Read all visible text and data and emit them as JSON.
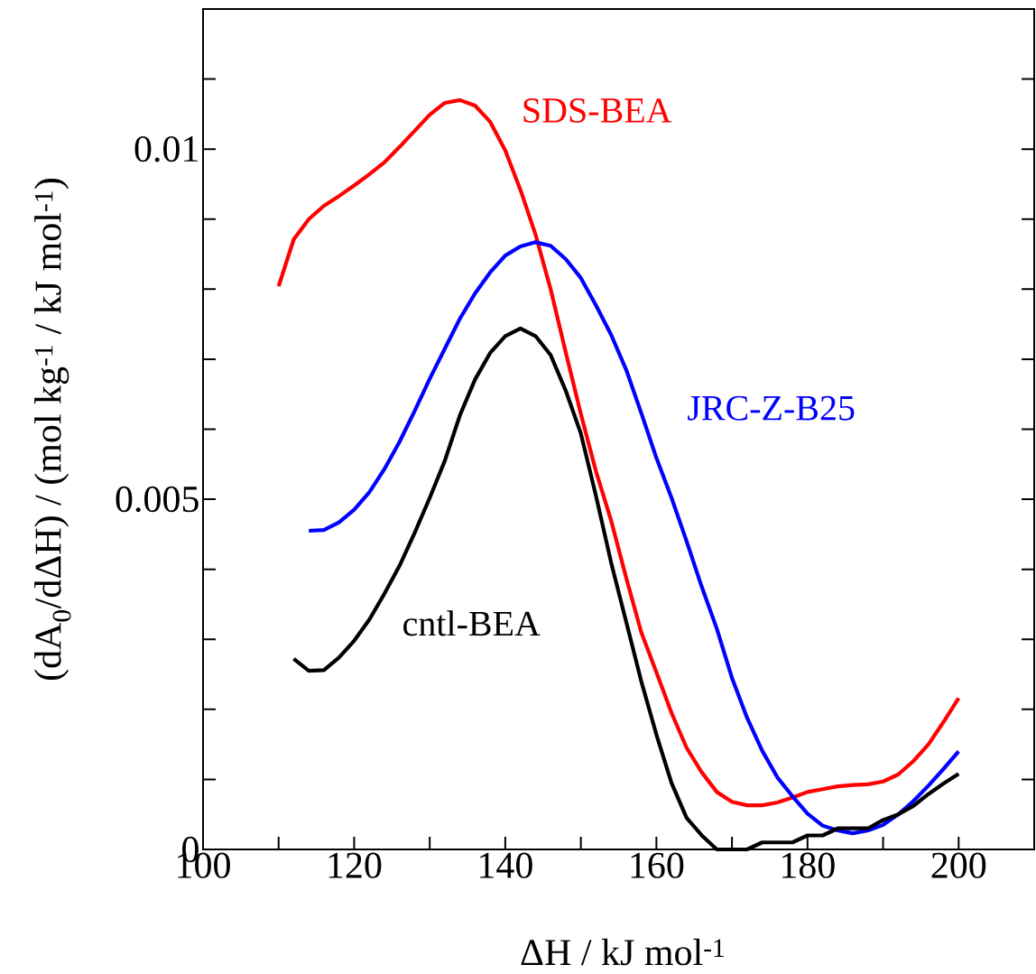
{
  "chart_data": {
    "type": "line",
    "xlabel": "ΔH / kJ mol$^{-1}$",
    "ylabel": "(dA$_{0}$/dΔH) / (mol kg$^{-1}$ / kJ mol$^{-1}$)",
    "xlim": [
      100,
      210
    ],
    "ylim": [
      0,
      0.012
    ],
    "xticks": [
      100,
      {
        "value": 110,
        "label": null
      },
      120,
      {
        "value": 130,
        "label": null
      },
      140,
      {
        "value": 150,
        "label": null
      },
      160,
      {
        "value": 170,
        "label": null
      },
      180,
      {
        "value": 190,
        "label": null
      },
      200,
      {
        "value": 210,
        "label": null
      }
    ],
    "yticks": [
      0,
      {
        "value": 0.001,
        "label": null
      },
      {
        "value": 0.002,
        "label": null
      },
      {
        "value": 0.003,
        "label": null
      },
      {
        "value": 0.004,
        "label": null
      },
      0.005,
      {
        "value": 0.006,
        "label": null
      },
      {
        "value": 0.007,
        "label": null
      },
      {
        "value": 0.008,
        "label": null
      },
      {
        "value": 0.009,
        "label": null
      },
      0.01,
      {
        "value": 0.011,
        "label": null
      },
      {
        "value": 0.012,
        "label": null
      }
    ],
    "series": [
      {
        "name": "SDS-BEA",
        "color": "#ff0000",
        "x": [
          110,
          112,
          114,
          116,
          118,
          120,
          122,
          124,
          126,
          128,
          130,
          132,
          134,
          136,
          138,
          140,
          142,
          144,
          146,
          148,
          150,
          152,
          154,
          156,
          158,
          160,
          162,
          164,
          166,
          168,
          170,
          172,
          174,
          176,
          178,
          180,
          182,
          184,
          186,
          188,
          190,
          192,
          194,
          196,
          198,
          200
        ],
        "values": [
          0.00804,
          0.00871,
          0.009,
          0.00919,
          0.00933,
          0.00948,
          0.00964,
          0.00981,
          0.01003,
          0.01026,
          0.01049,
          0.01066,
          0.0107,
          0.01062,
          0.01039,
          0.00998,
          0.00942,
          0.00878,
          0.008,
          0.0071,
          0.00622,
          0.0054,
          0.0047,
          0.00388,
          0.0031,
          0.00253,
          0.00195,
          0.00145,
          0.0011,
          0.00082,
          0.00068,
          0.00063,
          0.00063,
          0.00067,
          0.00074,
          0.00082,
          0.00086,
          0.0009,
          0.00092,
          0.00093,
          0.00097,
          0.00107,
          0.00126,
          0.0015,
          0.00182,
          0.00216
        ]
      },
      {
        "name": "JRC-Z-B25",
        "color": "#0000ff",
        "x": [
          114,
          116,
          118,
          120,
          122,
          124,
          126,
          128,
          130,
          132,
          134,
          136,
          138,
          140,
          142,
          144,
          146,
          148,
          150,
          152,
          154,
          156,
          158,
          160,
          162,
          164,
          166,
          168,
          170,
          172,
          174,
          176,
          178,
          180,
          182,
          184,
          186,
          188,
          190,
          192,
          194,
          196,
          198,
          200
        ],
        "values": [
          0.00455,
          0.00456,
          0.00467,
          0.00485,
          0.0051,
          0.00543,
          0.00582,
          0.00626,
          0.00672,
          0.00715,
          0.00758,
          0.00794,
          0.00824,
          0.00848,
          0.00861,
          0.00867,
          0.00862,
          0.00843,
          0.00816,
          0.00777,
          0.00735,
          0.00685,
          0.00623,
          0.00559,
          0.00502,
          0.0044,
          0.00375,
          0.00315,
          0.00245,
          0.00188,
          0.00141,
          0.00103,
          0.00076,
          0.00051,
          0.00034,
          0.00027,
          0.00023,
          0.00027,
          0.00035,
          0.0005,
          0.00069,
          0.00091,
          0.00115,
          0.0014
        ]
      },
      {
        "name": "cntl-BEA",
        "color": "#000000",
        "x": [
          112,
          114,
          116,
          118,
          120,
          122,
          124,
          126,
          128,
          130,
          132,
          134,
          136,
          138,
          140,
          142,
          144,
          146,
          148,
          150,
          152,
          154,
          156,
          158,
          160,
          162,
          164,
          166,
          168,
          170,
          172,
          174,
          176,
          178,
          180,
          182,
          184,
          186,
          188,
          190,
          192,
          194,
          196,
          198,
          200
        ],
        "values": [
          0.00272,
          0.00255,
          0.00256,
          0.00274,
          0.00298,
          0.00328,
          0.00365,
          0.00405,
          0.00452,
          0.00502,
          0.00555,
          0.0062,
          0.00671,
          0.00709,
          0.00733,
          0.00744,
          0.00733,
          0.00706,
          0.00655,
          0.00594,
          0.00505,
          0.0041,
          0.00325,
          0.0024,
          0.00164,
          0.00095,
          0.00045,
          0.0002,
          0,
          0,
          0,
          0.0001,
          0.0001,
          0.0001,
          0.0002,
          0.0002,
          0.0003,
          0.0003,
          0.0003,
          0.00042,
          0.0005,
          0.00062,
          0.00079,
          0.00094,
          0.00108
        ]
      }
    ]
  }
}
